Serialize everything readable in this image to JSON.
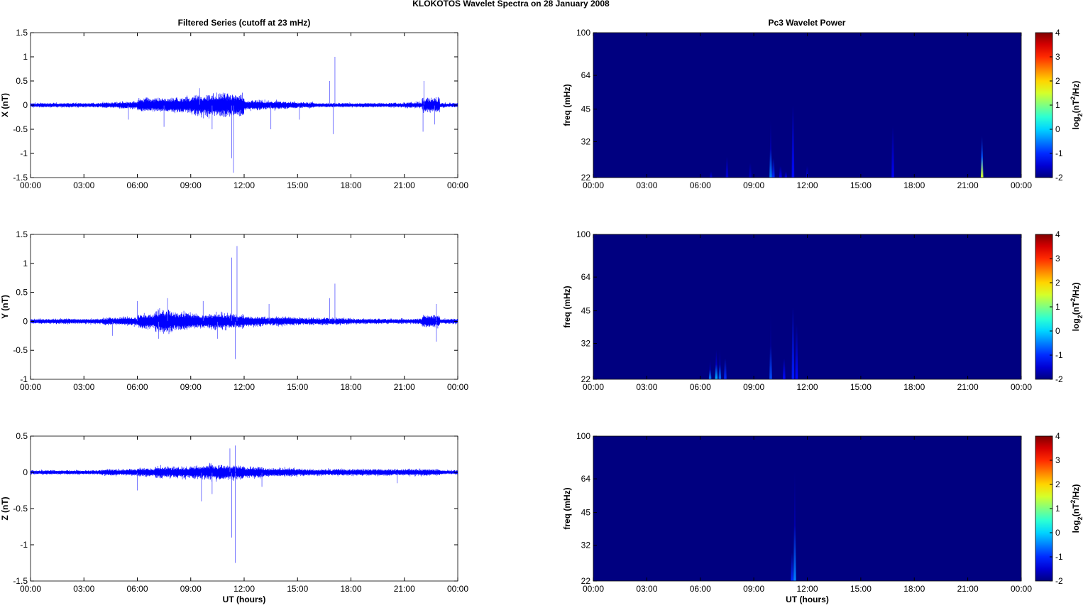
{
  "figure": {
    "title": "KLOKOTOS Wavelet Spectra on 28 January   2008"
  },
  "chart_data": [
    {
      "type": "line",
      "panel": "X",
      "title": "Filtered Series (cutoff at 23 mHz)",
      "ylabel": "X (nT)",
      "xlabel": "",
      "xlim": [
        0,
        24
      ],
      "ylim": [
        -1.5,
        1.5
      ],
      "yticks": [
        "-1.5",
        "-1",
        "-0.5",
        "0",
        "0.5",
        "1",
        "1.5"
      ],
      "xticks": [
        "00:00",
        "03:00",
        "06:00",
        "09:00",
        "12:00",
        "15:00",
        "18:00",
        "21:00",
        "00:00"
      ],
      "noise_envelope_nT_by_hour": [
        0.03,
        0.03,
        0.03,
        0.03,
        0.04,
        0.05,
        0.09,
        0.1,
        0.11,
        0.14,
        0.16,
        0.15,
        0.07,
        0.06,
        0.05,
        0.04,
        0.03,
        0.03,
        0.03,
        0.03,
        0.03,
        0.04,
        0.1,
        0.03
      ],
      "spikes": [
        [
          11.4,
          -1.4
        ],
        [
          11.3,
          -1.1
        ],
        [
          17.1,
          1.0
        ],
        [
          16.8,
          0.5
        ],
        [
          17.0,
          -0.6
        ],
        [
          22.1,
          0.5
        ],
        [
          22.05,
          -0.55
        ],
        [
          7.5,
          -0.45
        ],
        [
          9.5,
          0.35
        ],
        [
          13.5,
          -0.5
        ],
        [
          22.7,
          -0.4
        ],
        [
          10.2,
          -0.5
        ],
        [
          5.5,
          -0.3
        ],
        [
          15.1,
          -0.3
        ]
      ],
      "color": "#0000ff"
    },
    {
      "type": "line",
      "panel": "Y",
      "ylabel": "Y (nT)",
      "xlabel": "",
      "xlim": [
        0,
        24
      ],
      "ylim": [
        -1,
        1.5
      ],
      "yticks": [
        "-1",
        "-0.5",
        "0",
        "0.5",
        "1",
        "1.5"
      ],
      "xticks": [
        "00:00",
        "03:00",
        "06:00",
        "09:00",
        "12:00",
        "15:00",
        "18:00",
        "21:00",
        "00:00"
      ],
      "noise_envelope_nT_by_hour": [
        0.03,
        0.03,
        0.03,
        0.03,
        0.04,
        0.05,
        0.08,
        0.13,
        0.1,
        0.08,
        0.09,
        0.08,
        0.06,
        0.05,
        0.05,
        0.04,
        0.04,
        0.04,
        0.03,
        0.03,
        0.03,
        0.03,
        0.07,
        0.03
      ],
      "spikes": [
        [
          11.6,
          1.3
        ],
        [
          11.3,
          1.1
        ],
        [
          11.5,
          -0.65
        ],
        [
          17.1,
          0.65
        ],
        [
          16.8,
          0.4
        ],
        [
          7.7,
          0.4
        ],
        [
          6.0,
          0.35
        ],
        [
          22.8,
          0.3
        ],
        [
          7.2,
          -0.3
        ],
        [
          4.6,
          -0.25
        ],
        [
          9.7,
          0.35
        ],
        [
          10.5,
          -0.3
        ],
        [
          22.8,
          -0.35
        ],
        [
          13.4,
          0.3
        ]
      ],
      "color": "#0000ff"
    },
    {
      "type": "line",
      "panel": "Z",
      "ylabel": "Z (nT)",
      "xlabel": "UT (hours)",
      "xlim": [
        0,
        24
      ],
      "ylim": [
        -1.5,
        0.5
      ],
      "yticks": [
        "-1.5",
        "-1",
        "-0.5",
        "0",
        "0.5"
      ],
      "xticks": [
        "00:00",
        "03:00",
        "06:00",
        "09:00",
        "12:00",
        "15:00",
        "18:00",
        "21:00",
        "00:00"
      ],
      "noise_envelope_nT_by_hour": [
        0.02,
        0.02,
        0.02,
        0.02,
        0.03,
        0.03,
        0.04,
        0.05,
        0.05,
        0.06,
        0.07,
        0.07,
        0.05,
        0.04,
        0.04,
        0.03,
        0.03,
        0.03,
        0.03,
        0.03,
        0.03,
        0.03,
        0.03,
        0.02
      ],
      "spikes": [
        [
          11.5,
          -1.25
        ],
        [
          11.3,
          -0.9
        ],
        [
          11.5,
          0.37
        ],
        [
          9.6,
          -0.4
        ],
        [
          11.2,
          0.33
        ],
        [
          20.6,
          -0.15
        ],
        [
          6.0,
          -0.25
        ],
        [
          10.2,
          -0.3
        ],
        [
          13.0,
          -0.2
        ]
      ],
      "color": "#0000ff"
    },
    {
      "type": "heatmap",
      "panel": "X",
      "title": "Pc3 Wavelet Power",
      "ylabel": "freq (mHz)",
      "xlabel": "",
      "xlim": [
        0,
        24
      ],
      "ylim": [
        22,
        100
      ],
      "yscale": "log",
      "yticks": [
        "22",
        "32",
        "45",
        "64",
        "100"
      ],
      "xticks": [
        "00:00",
        "03:00",
        "06:00",
        "09:00",
        "12:00",
        "15:00",
        "18:00",
        "21:00",
        "00:00"
      ],
      "background_log2_power": -2,
      "streaks_hour_topfreq_log2power": [
        [
          9.95,
          40,
          -0.5
        ],
        [
          10.1,
          33,
          -1
        ],
        [
          11.2,
          100,
          -1.2
        ],
        [
          16.8,
          64,
          -1.3
        ],
        [
          21.8,
          34,
          1.5
        ],
        [
          7.5,
          34,
          -1.5
        ],
        [
          6.6,
          25,
          -1.5
        ],
        [
          10.5,
          28,
          -1.3
        ],
        [
          10.8,
          25,
          -1.4
        ],
        [
          12.0,
          28,
          -1.5
        ],
        [
          8.8,
          30,
          -1.6
        ]
      ],
      "colorbar": {
        "label": "log2(nT^2/Hz)",
        "range": [
          -2,
          4
        ],
        "ticks": [
          "-2",
          "-1",
          "0",
          "1",
          "2",
          "3",
          "4"
        ]
      }
    },
    {
      "type": "heatmap",
      "panel": "Y",
      "ylabel": "freq (mHz)",
      "xlabel": "",
      "xlim": [
        0,
        24
      ],
      "ylim": [
        22,
        100
      ],
      "yscale": "log",
      "yticks": [
        "22",
        "32",
        "45",
        "64",
        "100"
      ],
      "xticks": [
        "00:00",
        "03:00",
        "06:00",
        "09:00",
        "12:00",
        "15:00",
        "18:00",
        "21:00",
        "00:00"
      ],
      "background_log2_power": -2,
      "streaks_hour_topfreq_log2power": [
        [
          6.55,
          27,
          -0.5
        ],
        [
          6.9,
          30,
          -0.2
        ],
        [
          7.1,
          30,
          -0.6
        ],
        [
          7.4,
          34,
          -1
        ],
        [
          9.95,
          44,
          -0.8
        ],
        [
          10.7,
          34,
          -1.2
        ],
        [
          11.2,
          100,
          -1.1
        ],
        [
          11.4,
          70,
          -1.2
        ]
      ],
      "colorbar": {
        "label": "log2(nT^2/Hz)",
        "range": [
          -2,
          4
        ],
        "ticks": [
          "-2",
          "-1",
          "0",
          "1",
          "2",
          "3",
          "4"
        ]
      }
    },
    {
      "type": "heatmap",
      "panel": "Z",
      "ylabel": "freq (mHz)",
      "xlabel": "UT (hours)",
      "xlim": [
        0,
        24
      ],
      "ylim": [
        22,
        100
      ],
      "yscale": "log",
      "yticks": [
        "22",
        "32",
        "45",
        "64",
        "100"
      ],
      "xticks": [
        "00:00",
        "03:00",
        "06:00",
        "09:00",
        "12:00",
        "15:00",
        "18:00",
        "21:00",
        "00:00"
      ],
      "background_log2_power": -2,
      "streaks_hour_topfreq_log2power": [
        [
          11.3,
          70,
          -0.5
        ],
        [
          11.15,
          40,
          -1
        ]
      ],
      "colorbar": {
        "label": "log2(nT^2/Hz)",
        "range": [
          -2,
          4
        ],
        "ticks": [
          "-2",
          "-1",
          "0",
          "1",
          "2",
          "3",
          "4"
        ]
      }
    }
  ]
}
